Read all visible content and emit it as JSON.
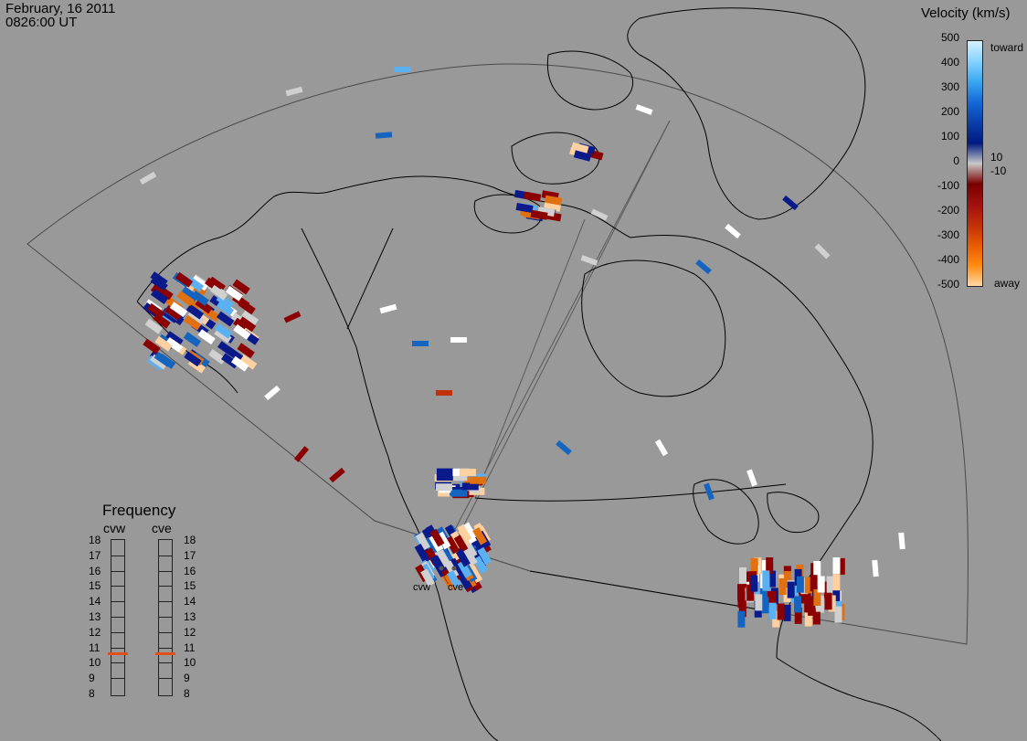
{
  "header": {
    "date": "February, 16 2011",
    "time": "0826:00 UT"
  },
  "colorbar": {
    "title": "Velocity (km/s)",
    "ticks": [
      500,
      400,
      300,
      200,
      100,
      0,
      -100,
      -200,
      -300,
      -400,
      -500
    ],
    "ticks_text": [
      "500",
      "400",
      "300",
      "200",
      "100",
      "0",
      "-100",
      "-200",
      "-300",
      "-400",
      "-500"
    ],
    "extra_ticks": [
      "10",
      "-10"
    ],
    "toward_label": "toward",
    "away_label": "away",
    "colors": [
      "#d6f0ff",
      "#86d3ff",
      "#3aa6f0",
      "#1568d6",
      "#0b3fa8",
      "#001a80",
      "#c8c8c8",
      "#7a0000",
      "#a01010",
      "#c0300a",
      "#e85a05",
      "#ff8c10",
      "#ffd9a8"
    ]
  },
  "frequency": {
    "title": "Frequency",
    "radars": [
      "cvw",
      "cve"
    ],
    "levels": [
      "18",
      "17",
      "16",
      "15",
      "14",
      "13",
      "12",
      "11",
      "10",
      "9",
      "8"
    ],
    "selected": [
      11,
      11
    ],
    "marker_color": "#e0501a"
  },
  "stations": {
    "west": "cvw",
    "east": "cve"
  },
  "colors": {
    "background": "#999999",
    "coast": "#000000",
    "fov": "#444444"
  }
}
